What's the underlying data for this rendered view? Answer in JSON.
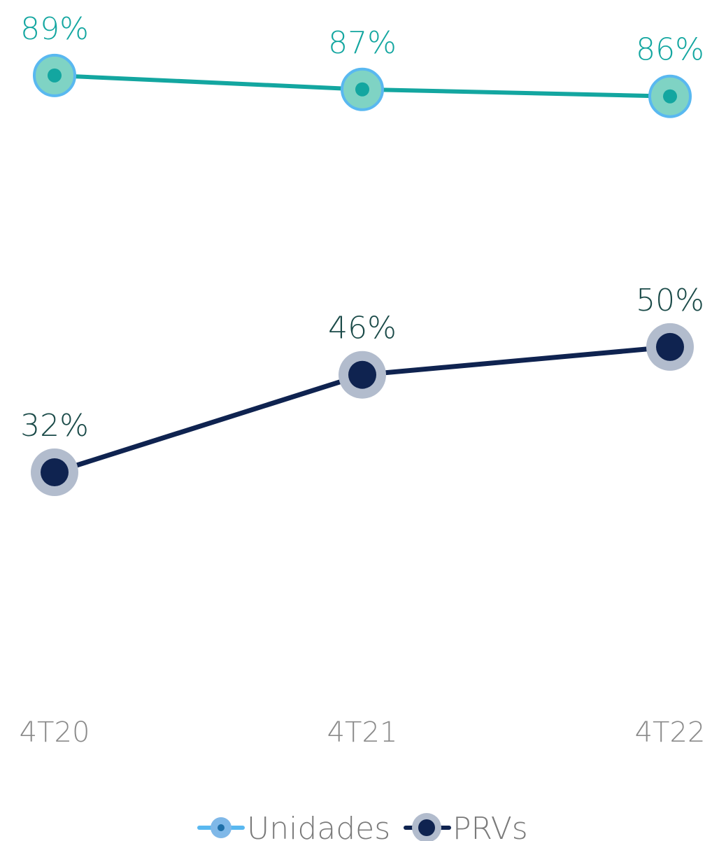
{
  "chart_data": {
    "type": "line",
    "categories": [
      "4T20",
      "4T21",
      "4T22"
    ],
    "series": [
      {
        "name": "Unidades",
        "values": [
          89,
          87,
          86
        ],
        "labels": [
          "89%",
          "87%",
          "86%"
        ],
        "line_color": "#13a6a0",
        "marker_halo_color": "#7fd3c4",
        "marker_ring_color": "#59b8f0",
        "marker_dot_color": "#13a6a0",
        "label_color": "#13a6a0"
      },
      {
        "name": "PRVs",
        "values": [
          32,
          46,
          50
        ],
        "labels": [
          "32%",
          "46%",
          "50%"
        ],
        "line_color": "#0f2350",
        "marker_halo_color": "#b2bccd",
        "marker_ring_color": "#b2bccd",
        "marker_dot_color": "#0f2350",
        "label_color": "#1a4a48"
      }
    ],
    "legend": "bottom",
    "grid": false,
    "data_labels": true,
    "title": "",
    "xlabel": "",
    "ylabel": ""
  }
}
